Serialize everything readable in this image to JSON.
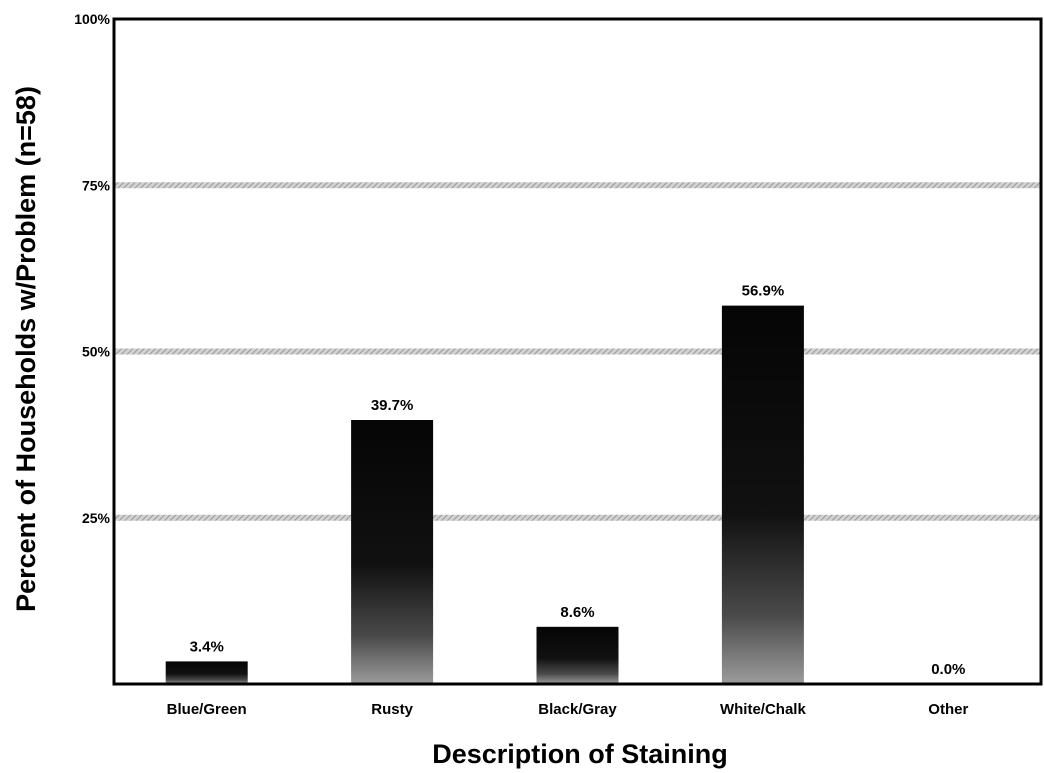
{
  "chart_data": {
    "type": "bar",
    "title": "",
    "xlabel": "Description of Staining",
    "ylabel": "Percent of Households w/Problem (n=58)",
    "categories": [
      "Blue/Green",
      "Rusty",
      "Black/Gray",
      "White/Chalk",
      "Other"
    ],
    "values": [
      3.4,
      39.7,
      8.6,
      56.9,
      0.0
    ],
    "value_labels": [
      "3.4%",
      "39.7%",
      "8.6%",
      "56.9%",
      "0.0%"
    ],
    "ylim": [
      0,
      100
    ],
    "yticks": [
      25,
      50,
      75,
      100
    ],
    "ytick_labels": [
      "25%",
      "50%",
      "75%",
      "100%"
    ],
    "grid": true,
    "legend": "none",
    "colors": {
      "bar": "#0a0a0a",
      "bar_shade": "#9a9a9a",
      "grid": "#b5b5b5",
      "axis": "#000000"
    }
  }
}
